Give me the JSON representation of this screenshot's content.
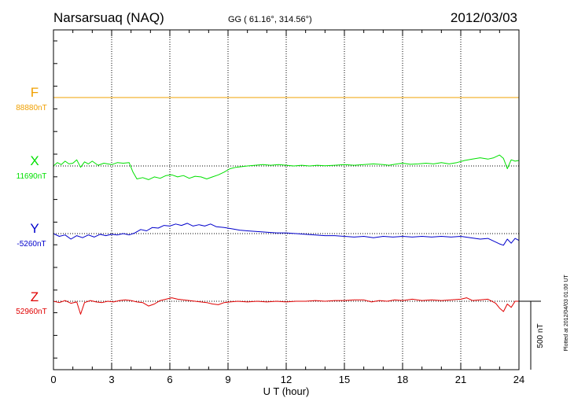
{
  "header": {
    "station": "Narsarsuaq (NAQ)",
    "coords": "GG ( 61.16°, 314.56°)",
    "date": "2012/03/03"
  },
  "footer": {
    "plotted_note": "Plotted at 2012/04/03 01:00 UT",
    "scale_label": "500 nT"
  },
  "colors": {
    "F": "#f0a000",
    "X": "#00e000",
    "Y": "#0000cc",
    "Z": "#e00000",
    "axis": "#000000",
    "grid": "#000000"
  },
  "chart_data": {
    "type": "line",
    "xlabel": "U T (hour)",
    "xlim": [
      0,
      24
    ],
    "xticks": [
      0,
      3,
      6,
      9,
      12,
      15,
      18,
      21,
      24
    ],
    "x_tick_labels": [
      "0",
      "3",
      "6",
      "9",
      "12",
      "15",
      "18",
      "21",
      "24"
    ],
    "scale_nT": 500,
    "grid": "dotted",
    "series": [
      {
        "name": "F",
        "baseline_label": "88880nT",
        "points": [
          [
            0,
            0
          ],
          [
            24,
            0
          ]
        ]
      },
      {
        "name": "X",
        "baseline_label": "11690nT",
        "points": [
          [
            0,
            0
          ],
          [
            0.2,
            25
          ],
          [
            0.4,
            10
          ],
          [
            0.6,
            35
          ],
          [
            0.8,
            15
          ],
          [
            1.0,
            20
          ],
          [
            1.2,
            45
          ],
          [
            1.4,
            -10
          ],
          [
            1.6,
            30
          ],
          [
            1.8,
            15
          ],
          [
            2.0,
            35
          ],
          [
            2.3,
            5
          ],
          [
            2.6,
            20
          ],
          [
            3.0,
            10
          ],
          [
            3.3,
            25
          ],
          [
            3.6,
            20
          ],
          [
            3.9,
            25
          ],
          [
            4.1,
            -45
          ],
          [
            4.3,
            -95
          ],
          [
            4.6,
            -85
          ],
          [
            4.9,
            -100
          ],
          [
            5.2,
            -80
          ],
          [
            5.5,
            -90
          ],
          [
            5.8,
            -70
          ],
          [
            6.1,
            -65
          ],
          [
            6.4,
            -80
          ],
          [
            6.7,
            -70
          ],
          [
            7.0,
            -90
          ],
          [
            7.3,
            -75
          ],
          [
            7.6,
            -80
          ],
          [
            7.9,
            -95
          ],
          [
            8.2,
            -80
          ],
          [
            8.5,
            -65
          ],
          [
            8.8,
            -45
          ],
          [
            9.1,
            -20
          ],
          [
            9.4,
            -10
          ],
          [
            9.7,
            -5
          ],
          [
            10.0,
            0
          ],
          [
            10.4,
            5
          ],
          [
            10.8,
            10
          ],
          [
            11.2,
            5
          ],
          [
            11.6,
            10
          ],
          [
            12.0,
            5
          ],
          [
            12.4,
            0
          ],
          [
            12.8,
            5
          ],
          [
            13.2,
            0
          ],
          [
            13.6,
            5
          ],
          [
            14.0,
            2
          ],
          [
            14.5,
            5
          ],
          [
            15.0,
            10
          ],
          [
            15.5,
            5
          ],
          [
            16.0,
            10
          ],
          [
            16.5,
            15
          ],
          [
            17.0,
            10
          ],
          [
            17.3,
            5
          ],
          [
            17.6,
            12
          ],
          [
            18.0,
            20
          ],
          [
            18.4,
            12
          ],
          [
            18.8,
            15
          ],
          [
            19.2,
            20
          ],
          [
            19.6,
            15
          ],
          [
            20.0,
            25
          ],
          [
            20.4,
            15
          ],
          [
            20.8,
            25
          ],
          [
            21.2,
            40
          ],
          [
            21.6,
            50
          ],
          [
            22.0,
            60
          ],
          [
            22.4,
            50
          ],
          [
            22.7,
            60
          ],
          [
            23.0,
            80
          ],
          [
            23.2,
            55
          ],
          [
            23.4,
            -20
          ],
          [
            23.6,
            45
          ],
          [
            23.8,
            35
          ],
          [
            24.0,
            40
          ]
        ]
      },
      {
        "name": "Y",
        "baseline_label": "-5260nT",
        "points": [
          [
            0,
            0
          ],
          [
            0.3,
            -20
          ],
          [
            0.6,
            -10
          ],
          [
            0.9,
            -40
          ],
          [
            1.2,
            -15
          ],
          [
            1.5,
            -30
          ],
          [
            1.8,
            -10
          ],
          [
            2.1,
            -25
          ],
          [
            2.4,
            -5
          ],
          [
            2.7,
            -15
          ],
          [
            3.0,
            -5
          ],
          [
            3.3,
            -10
          ],
          [
            3.6,
            0
          ],
          [
            3.9,
            -10
          ],
          [
            4.2,
            5
          ],
          [
            4.5,
            30
          ],
          [
            4.8,
            20
          ],
          [
            5.1,
            45
          ],
          [
            5.4,
            40
          ],
          [
            5.7,
            60
          ],
          [
            6.0,
            55
          ],
          [
            6.3,
            70
          ],
          [
            6.6,
            60
          ],
          [
            6.9,
            75
          ],
          [
            7.2,
            55
          ],
          [
            7.5,
            65
          ],
          [
            7.8,
            55
          ],
          [
            8.1,
            70
          ],
          [
            8.4,
            50
          ],
          [
            8.8,
            45
          ],
          [
            9.2,
            35
          ],
          [
            9.6,
            25
          ],
          [
            10.0,
            20
          ],
          [
            10.5,
            15
          ],
          [
            11.0,
            10
          ],
          [
            11.5,
            5
          ],
          [
            12.0,
            5
          ],
          [
            12.5,
            0
          ],
          [
            13.0,
            -5
          ],
          [
            13.5,
            -10
          ],
          [
            14.0,
            -15
          ],
          [
            14.5,
            -15
          ],
          [
            15.0,
            -20
          ],
          [
            15.5,
            -25
          ],
          [
            16.0,
            -20
          ],
          [
            16.5,
            -30
          ],
          [
            17.0,
            -20
          ],
          [
            17.5,
            -25
          ],
          [
            18.0,
            -20
          ],
          [
            18.5,
            -25
          ],
          [
            19.0,
            -20
          ],
          [
            19.5,
            -25
          ],
          [
            20.0,
            -20
          ],
          [
            20.5,
            -25
          ],
          [
            21.0,
            -20
          ],
          [
            21.5,
            -30
          ],
          [
            22.0,
            -40
          ],
          [
            22.4,
            -35
          ],
          [
            22.7,
            -55
          ],
          [
            23.0,
            -75
          ],
          [
            23.2,
            -85
          ],
          [
            23.4,
            -40
          ],
          [
            23.6,
            -70
          ],
          [
            23.8,
            -35
          ],
          [
            24.0,
            -50
          ]
        ]
      },
      {
        "name": "Z",
        "baseline_label": "52960nT",
        "points": [
          [
            0,
            0
          ],
          [
            0.3,
            -10
          ],
          [
            0.6,
            5
          ],
          [
            0.9,
            -15
          ],
          [
            1.2,
            -5
          ],
          [
            1.4,
            -95
          ],
          [
            1.6,
            -10
          ],
          [
            1.9,
            5
          ],
          [
            2.2,
            -5
          ],
          [
            2.5,
            -10
          ],
          [
            2.8,
            0
          ],
          [
            3.1,
            -5
          ],
          [
            3.4,
            5
          ],
          [
            3.7,
            10
          ],
          [
            4.0,
            5
          ],
          [
            4.3,
            -5
          ],
          [
            4.6,
            -10
          ],
          [
            4.9,
            -35
          ],
          [
            5.2,
            -20
          ],
          [
            5.5,
            5
          ],
          [
            5.8,
            15
          ],
          [
            6.1,
            25
          ],
          [
            6.4,
            15
          ],
          [
            6.7,
            10
          ],
          [
            7.0,
            5
          ],
          [
            7.3,
            0
          ],
          [
            7.6,
            -5
          ],
          [
            7.9,
            -10
          ],
          [
            8.2,
            -20
          ],
          [
            8.5,
            -25
          ],
          [
            8.8,
            -10
          ],
          [
            9.1,
            -5
          ],
          [
            9.5,
            0
          ],
          [
            10.0,
            -5
          ],
          [
            10.5,
            0
          ],
          [
            11.0,
            -5
          ],
          [
            11.5,
            0
          ],
          [
            12.0,
            -5
          ],
          [
            12.5,
            0
          ],
          [
            13.0,
            0
          ],
          [
            13.5,
            5
          ],
          [
            14.0,
            0
          ],
          [
            14.5,
            5
          ],
          [
            15.0,
            5
          ],
          [
            15.5,
            10
          ],
          [
            16.0,
            10
          ],
          [
            16.4,
            -5
          ],
          [
            16.8,
            5
          ],
          [
            17.2,
            0
          ],
          [
            17.6,
            10
          ],
          [
            18.0,
            5
          ],
          [
            18.5,
            15
          ],
          [
            19.0,
            5
          ],
          [
            19.5,
            10
          ],
          [
            20.0,
            5
          ],
          [
            20.5,
            10
          ],
          [
            21.0,
            15
          ],
          [
            21.3,
            25
          ],
          [
            21.6,
            5
          ],
          [
            22.0,
            10
          ],
          [
            22.4,
            15
          ],
          [
            22.8,
            -15
          ],
          [
            23.0,
            -50
          ],
          [
            23.2,
            -75
          ],
          [
            23.4,
            -20
          ],
          [
            23.6,
            -45
          ],
          [
            23.8,
            0
          ],
          [
            24.0,
            0
          ]
        ]
      }
    ]
  }
}
